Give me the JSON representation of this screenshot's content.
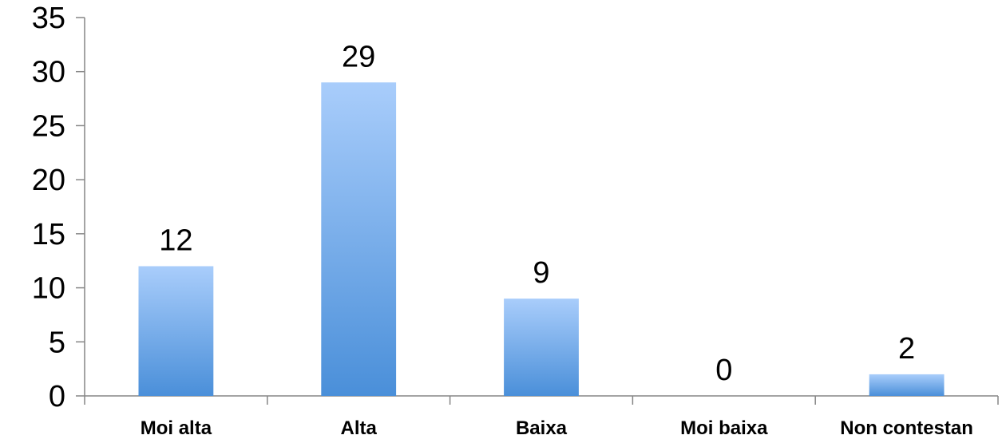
{
  "chart_data": {
    "type": "bar",
    "categories": [
      "Moi alta",
      "Alta",
      "Baixa",
      "Moi baixa",
      "Non contestan"
    ],
    "values": [
      12,
      29,
      9,
      0,
      2
    ],
    "data_labels": [
      "12",
      "29",
      "9",
      "0",
      "2"
    ],
    "title": "",
    "xlabel": "",
    "ylabel": "",
    "ylim": [
      0,
      35
    ],
    "yticks": [
      "0",
      "5",
      "10",
      "15",
      "20",
      "25",
      "30",
      "35"
    ],
    "grid": false,
    "legend": "none",
    "bar_color_top": "#a9cdfb",
    "bar_color_bottom": "#4a8fd9"
  }
}
